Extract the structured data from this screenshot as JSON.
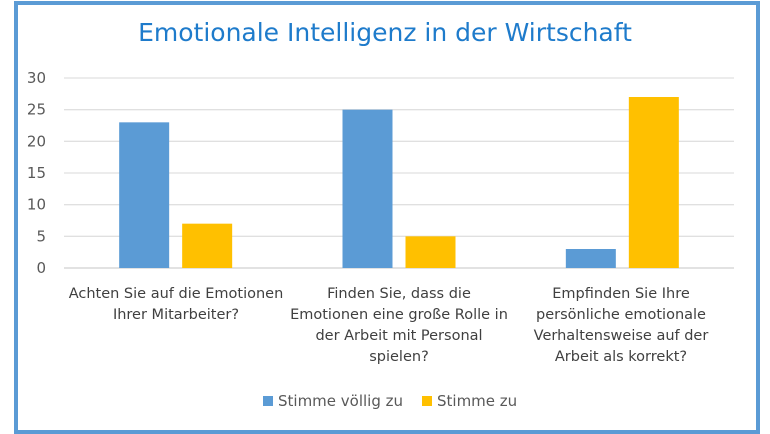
{
  "chart_data": {
    "type": "bar",
    "title": "Emotionale Intelligenz in der Wirtschaft",
    "categories": [
      "Achten Sie auf die Emotionen Ihrer Mitarbeiter?",
      "Finden Sie, dass die Emotionen eine große Rolle in der Arbeit mit Personal spielen?",
      "Empfinden Sie Ihre persönliche emotionale Verhaltensweise auf der Arbeit als korrekt?"
    ],
    "series": [
      {
        "name": "Stimme völlig zu",
        "color": "#5B9BD5",
        "values": [
          23,
          25,
          3
        ]
      },
      {
        "name": "Stimme zu",
        "color": "#FFC000",
        "values": [
          7,
          5,
          27
        ]
      }
    ],
    "ylim": [
      0,
      30
    ],
    "yticks": [
      "0",
      "5",
      "10",
      "15",
      "20",
      "25",
      "30"
    ],
    "grid": true,
    "legend": "bottom",
    "frame_color": "#5B9BD5",
    "title_color": "#1E7BCB"
  }
}
